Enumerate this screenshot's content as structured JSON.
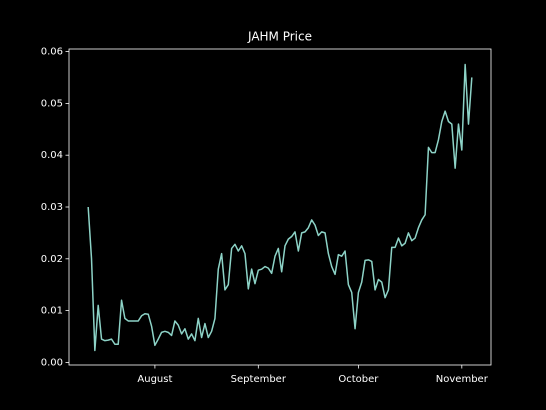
{
  "chart_data": {
    "type": "line",
    "title": "JAHM Price",
    "color": "#8dd3c7",
    "categories": [
      null,
      null,
      null,
      null,
      null,
      null,
      null,
      null,
      null,
      null,
      null,
      null,
      null,
      null,
      null,
      null,
      null,
      null,
      null,
      null,
      "August",
      null,
      null,
      null,
      null,
      null,
      null,
      null,
      null,
      null,
      null,
      null,
      null,
      null,
      null,
      null,
      null,
      null,
      null,
      null,
      null,
      null,
      null,
      null,
      null,
      null,
      null,
      null,
      null,
      null,
      null,
      "September",
      null,
      null,
      null,
      null,
      null,
      null,
      null,
      null,
      null,
      null,
      null,
      null,
      null,
      null,
      null,
      null,
      null,
      null,
      null,
      null,
      null,
      null,
      null,
      null,
      null,
      null,
      null,
      null,
      null,
      "October",
      null,
      null,
      null,
      null,
      null,
      null,
      null,
      null,
      null,
      null,
      null,
      null,
      null,
      null,
      null,
      null,
      null,
      null,
      null,
      null,
      null,
      null,
      null,
      null,
      null,
      null,
      null,
      null,
      null,
      null,
      "November",
      null,
      null,
      null
    ],
    "values": [
      0.03,
      0.02,
      0.0023,
      0.011,
      0.0045,
      0.0042,
      0.0043,
      0.0045,
      0.0035,
      0.0035,
      0.012,
      0.0085,
      0.008,
      0.008,
      0.008,
      0.008,
      0.009,
      0.0094,
      0.0093,
      0.007,
      0.0033,
      0.0045,
      0.0058,
      0.006,
      0.0058,
      0.0052,
      0.008,
      0.0072,
      0.0055,
      0.0065,
      0.0045,
      0.0055,
      0.0042,
      0.0085,
      0.0048,
      0.0075,
      0.0048,
      0.006,
      0.0085,
      0.018,
      0.021,
      0.014,
      0.015,
      0.022,
      0.0228,
      0.0215,
      0.0225,
      0.021,
      0.0142,
      0.018,
      0.0152,
      0.0178,
      0.018,
      0.0185,
      0.0182,
      0.0172,
      0.0205,
      0.022,
      0.0175,
      0.0225,
      0.0238,
      0.0243,
      0.0252,
      0.0215,
      0.025,
      0.0252,
      0.026,
      0.0275,
      0.0265,
      0.0245,
      0.0252,
      0.025,
      0.021,
      0.0185,
      0.017,
      0.0208,
      0.0205,
      0.0215,
      0.015,
      0.0135,
      0.0065,
      0.0135,
      0.0155,
      0.0197,
      0.0198,
      0.0195,
      0.014,
      0.016,
      0.0155,
      0.0125,
      0.014,
      0.0222,
      0.0222,
      0.024,
      0.0225,
      0.023,
      0.025,
      0.0235,
      0.024,
      0.026,
      0.0275,
      0.0285,
      0.0415,
      0.0405,
      0.0405,
      0.043,
      0.0465,
      0.0485,
      0.0465,
      0.046,
      0.0375,
      0.046,
      0.041,
      0.0575,
      0.046,
      0.055
    ],
    "ylim": [
      -0.0005,
      0.0605
    ],
    "yticks": [
      {
        "value": 0,
        "label": "0.00"
      },
      0.01,
      0.02,
      0.03,
      0.04,
      0.05,
      0.06
    ]
  }
}
